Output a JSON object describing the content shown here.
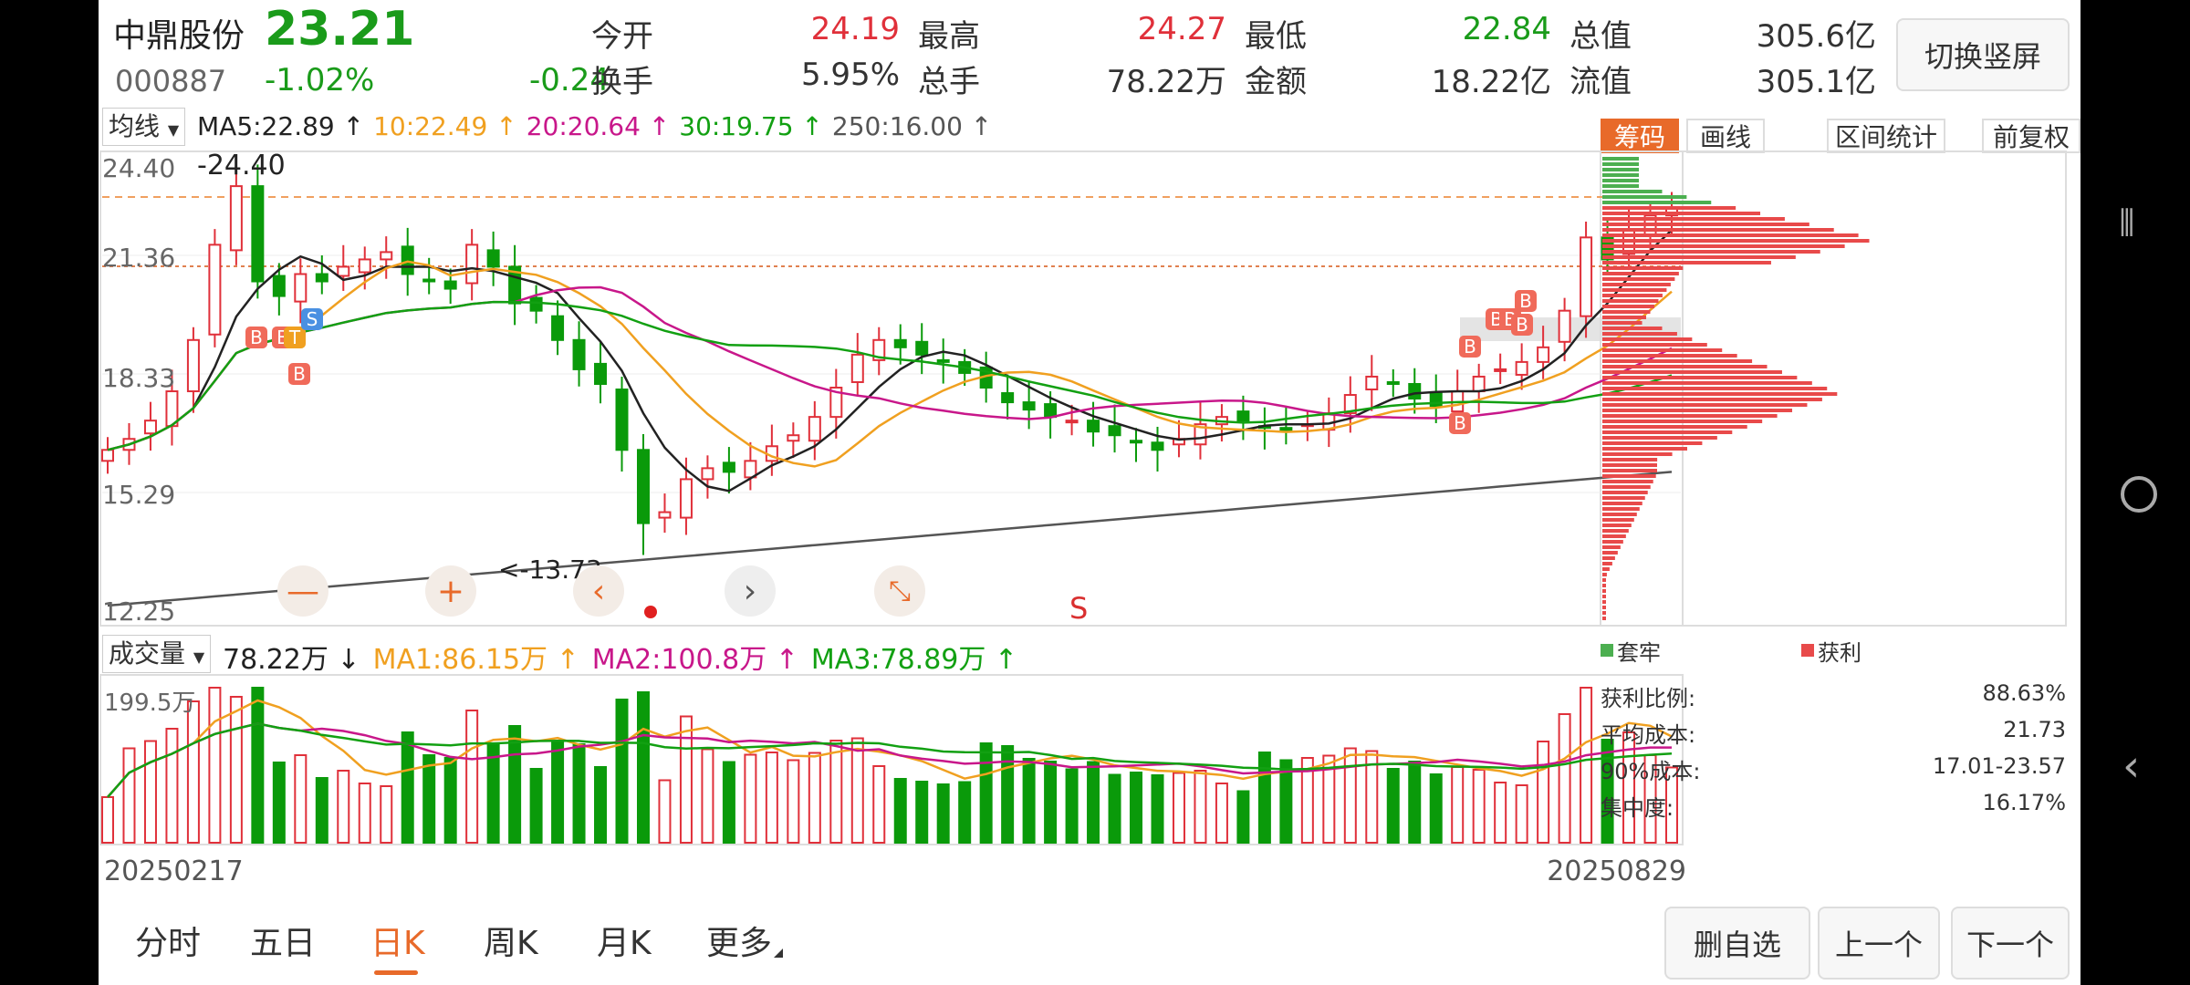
{
  "stock": {
    "name": "中鼎股份",
    "price": "23.21",
    "code": "000887",
    "change_pct": "-1.02%",
    "change": "-0.24"
  },
  "quote": [
    {
      "label": "今开",
      "value": "24.19",
      "color": "#e0303a"
    },
    {
      "label": "最高",
      "value": "24.27",
      "color": "#e0303a"
    },
    {
      "label": "最低",
      "value": "22.84",
      "color": "#1a9b1a"
    },
    {
      "label": "总值",
      "value": "305.6亿",
      "color": "#333333"
    },
    {
      "label": "换手",
      "value": "5.95%",
      "color": "#333333"
    },
    {
      "label": "总手",
      "value": "78.22万",
      "color": "#333333"
    },
    {
      "label": "金额",
      "value": "18.22亿",
      "color": "#333333"
    },
    {
      "label": "流值",
      "value": "305.1亿",
      "color": "#333333"
    }
  ],
  "switch_button": "切换竖屏",
  "ma_bar": {
    "selector": "均线",
    "items": [
      {
        "text": "MA5:22.89 ↑",
        "color": "#222222"
      },
      {
        "text": "10:22.49 ↑",
        "color": "#f0a020"
      },
      {
        "text": "20:20.64 ↑",
        "color": "#c8178a"
      },
      {
        "text": "30:19.75 ↑",
        "color": "#12a012"
      },
      {
        "text": "250:16.00 ↑",
        "color": "#555555"
      }
    ]
  },
  "side_tabs": [
    "筹码",
    "画线",
    "区间统计",
    "前复权"
  ],
  "price_axis": [
    "24.40",
    "21.36",
    "18.33",
    "15.29",
    "12.25"
  ],
  "annotations": {
    "high": "-24.40",
    "low": "<-13.73",
    "signal_s": "S",
    "markers": [
      "B",
      "B",
      "T",
      "S",
      "B",
      "B",
      "B",
      "B",
      "B",
      "B",
      "B"
    ]
  },
  "volume_bar": {
    "selector": "成交量",
    "items": [
      {
        "text": "78.22万 ↓",
        "color": "#222222"
      },
      {
        "text": "MA1:86.15万 ↑",
        "color": "#f0a020"
      },
      {
        "text": "MA2:100.8万 ↑",
        "color": "#c8178a"
      },
      {
        "text": "MA3:78.89万 ↑",
        "color": "#12a012"
      }
    ],
    "axis_top": "199.5万"
  },
  "dates": {
    "start": "20250217",
    "end": "20250829"
  },
  "chips": {
    "legend": [
      {
        "label": "套牢",
        "color": "#4caf50"
      },
      {
        "label": "获利",
        "color": "#e84a4a"
      }
    ],
    "stats": [
      {
        "label": "获利比例:",
        "value": "88.63%"
      },
      {
        "label": "平均成本:",
        "value": "21.73"
      },
      {
        "label": "90%成本:",
        "value": "17.01-23.57"
      },
      {
        "label": "集中度:",
        "value": "16.17%"
      }
    ]
  },
  "period_tabs": [
    "分时",
    "五日",
    "日K",
    "周K",
    "月K",
    "更多"
  ],
  "active_period": "日K",
  "action_buttons": [
    "删自选",
    "上一个",
    "下一个"
  ],
  "chart_data": {
    "type": "candlestick",
    "title": "",
    "xlabel": "",
    "ylabel": "",
    "x_range": [
      "20250217",
      "20250829"
    ],
    "ylim": [
      12.25,
      24.4
    ],
    "y_ticks": [
      24.4,
      21.36,
      18.33,
      15.29,
      12.25
    ],
    "close_series_approx": [
      16.6,
      16.9,
      17.4,
      18.2,
      19.6,
      22.2,
      23.8,
      21.2,
      20.8,
      21.4,
      21.2,
      21.6,
      21.8,
      22.0,
      21.4,
      21.2,
      21.0,
      22.2,
      21.6,
      20.6,
      20.4,
      19.6,
      18.8,
      18.4,
      16.6,
      14.6,
      14.9,
      15.8,
      16.1,
      16.0,
      16.3,
      16.7,
      17.0,
      17.5,
      18.3,
      19.2,
      19.6,
      19.4,
      19.2,
      19.0,
      18.7,
      18.3,
      17.9,
      17.7,
      17.5,
      17.4,
      17.1,
      17.0,
      16.8,
      16.6,
      16.9,
      17.3,
      17.5,
      17.4,
      17.2,
      17.1,
      17.3,
      17.6,
      18.1,
      18.6,
      18.4,
      18.0,
      17.8,
      18.2,
      18.6,
      18.8,
      19.0,
      19.4,
      20.4,
      22.4,
      21.8,
      22.6,
      23.0,
      23.21
    ],
    "volume_axis_top": "199.5万",
    "volume_latest": "78.22万"
  }
}
